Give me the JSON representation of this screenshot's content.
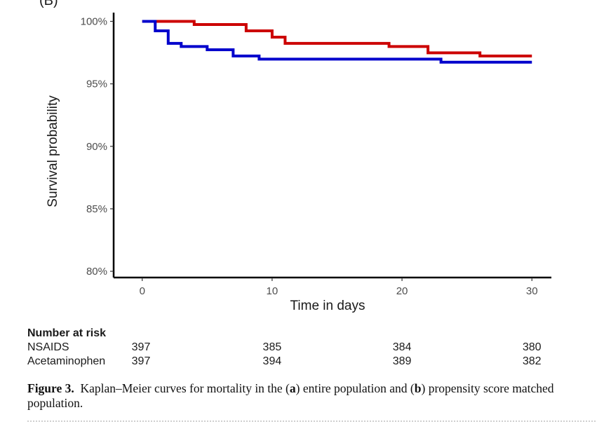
{
  "chart_data": {
    "type": "line",
    "panel_label": "(B)",
    "title": "",
    "xlabel": "Time in days",
    "ylabel": "Survival probability",
    "xlim": [
      -2.2,
      31.5
    ],
    "ylim": [
      79.5,
      100.7
    ],
    "x_ticks": [
      0,
      10,
      20,
      30
    ],
    "x_tick_labels": [
      "0",
      "10",
      "20",
      "30"
    ],
    "y_ticks": [
      80,
      85,
      90,
      95,
      100
    ],
    "y_tick_labels": [
      "80%",
      "85%",
      "90%",
      "95%",
      "100%"
    ],
    "grid": false,
    "series": [
      {
        "name": "NSAIDS",
        "color": "#cc0000",
        "steps": [
          [
            0,
            100
          ],
          [
            4,
            99.75
          ],
          [
            8,
            99.24
          ],
          [
            10,
            98.74
          ],
          [
            11,
            98.24
          ],
          [
            19,
            97.99
          ],
          [
            22,
            97.48
          ],
          [
            26,
            97.23
          ],
          [
            30,
            97.23
          ]
        ]
      },
      {
        "name": "Acetaminophen",
        "color": "#0000cc",
        "steps": [
          [
            0,
            100
          ],
          [
            1,
            99.24
          ],
          [
            2,
            98.24
          ],
          [
            3,
            97.99
          ],
          [
            5,
            97.73
          ],
          [
            7,
            97.23
          ],
          [
            9,
            96.98
          ],
          [
            23,
            96.73
          ],
          [
            30,
            96.73
          ]
        ]
      }
    ]
  },
  "risk_table": {
    "title": "Number at risk",
    "times": [
      0,
      10,
      20,
      30
    ],
    "rows": [
      {
        "label": "NSAIDS",
        "values": [
          "397",
          "385",
          "384",
          "380"
        ]
      },
      {
        "label": "Acetaminophen",
        "values": [
          "397",
          "394",
          "389",
          "382"
        ]
      }
    ]
  },
  "caption": {
    "label": "Figure 3.",
    "seg1": "Kaplan–Meier curves for mortality in the (",
    "a": "a",
    "seg2": ") entire population and (",
    "b": "b",
    "seg3": ") propensity score matched population."
  }
}
